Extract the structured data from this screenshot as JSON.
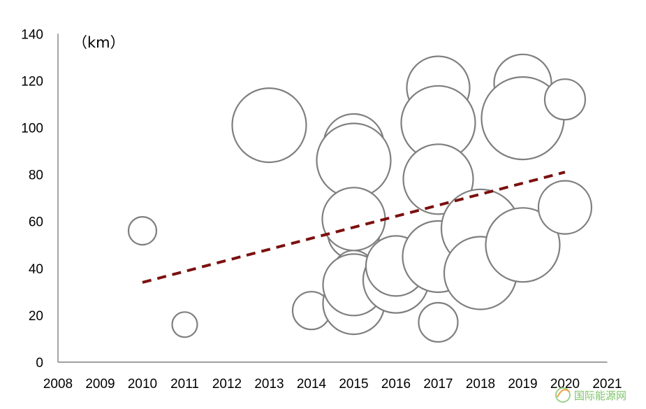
{
  "chart_data": {
    "type": "scatter",
    "variant": "bubble",
    "title": "",
    "xlabel": "",
    "ylabel": "",
    "unit_label": "（km）",
    "xlim": [
      2008,
      2021
    ],
    "ylim": [
      0,
      140
    ],
    "x_ticks": [
      "2008",
      "2009",
      "2010",
      "2011",
      "2012",
      "2013",
      "2014",
      "2015",
      "2016",
      "2017",
      "2018",
      "2019",
      "2020",
      "2021"
    ],
    "y_ticks": [
      "0",
      "20",
      "40",
      "60",
      "80",
      "100",
      "120",
      "140"
    ],
    "grid": false,
    "legend": "none",
    "bubble_stroke_color": "#7f7f7f",
    "bubble_fill_color": "#ffffff",
    "points": [
      {
        "x": 2010,
        "y": 56,
        "size": 20
      },
      {
        "x": 2011,
        "y": 16,
        "size": 18
      },
      {
        "x": 2013,
        "y": 101,
        "size": 53
      },
      {
        "x": 2014,
        "y": 22,
        "size": 27
      },
      {
        "x": 2015,
        "y": 93,
        "size": 43
      },
      {
        "x": 2015,
        "y": 86,
        "size": 53
      },
      {
        "x": 2015,
        "y": 67,
        "size": 23
      },
      {
        "x": 2015,
        "y": 61,
        "size": 36
      },
      {
        "x": 2015,
        "y": 55,
        "size": 37
      },
      {
        "x": 2015,
        "y": 39,
        "size": 29
      },
      {
        "x": 2015,
        "y": 25,
        "size": 44
      },
      {
        "x": 2015,
        "y": 33,
        "size": 44
      },
      {
        "x": 2015,
        "y": 61,
        "size": 45
      },
      {
        "x": 2016,
        "y": 35,
        "size": 47
      },
      {
        "x": 2016,
        "y": 41,
        "size": 43
      },
      {
        "x": 2017,
        "y": 117,
        "size": 45
      },
      {
        "x": 2017,
        "y": 102,
        "size": 53
      },
      {
        "x": 2017,
        "y": 78,
        "size": 50
      },
      {
        "x": 2017,
        "y": 45,
        "size": 51
      },
      {
        "x": 2017,
        "y": 17,
        "size": 28
      },
      {
        "x": 2018,
        "y": 57,
        "size": 56
      },
      {
        "x": 2018,
        "y": 38,
        "size": 52
      },
      {
        "x": 2019,
        "y": 119,
        "size": 41
      },
      {
        "x": 2019,
        "y": 104,
        "size": 59
      },
      {
        "x": 2019,
        "y": 50,
        "size": 53
      },
      {
        "x": 2020,
        "y": 112,
        "size": 29
      },
      {
        "x": 2020,
        "y": 66,
        "size": 38
      }
    ],
    "trendline": {
      "style": "dashed",
      "color": "#7b1010",
      "points": [
        {
          "x": 2010,
          "y": 34
        },
        {
          "x": 2020,
          "y": 81
        }
      ]
    }
  },
  "watermark": {
    "text": "国际能源网",
    "color": "#7ec36a"
  }
}
